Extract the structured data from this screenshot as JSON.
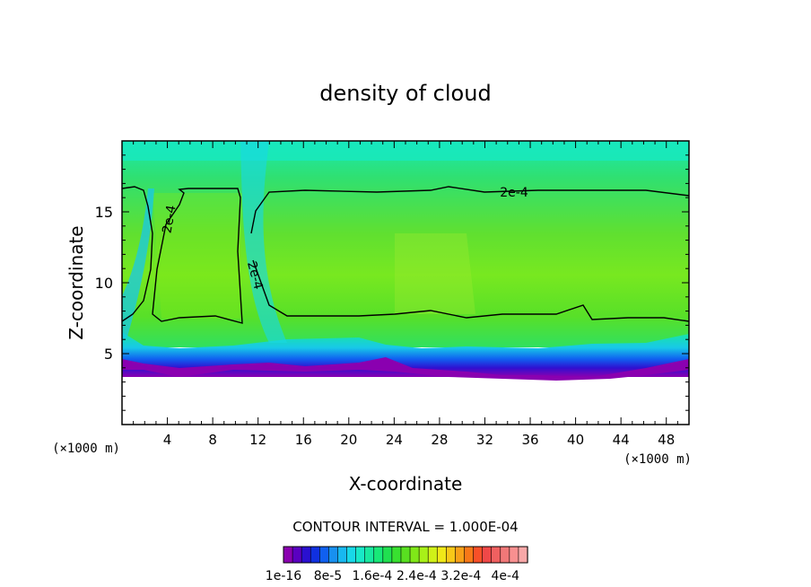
{
  "chart_data": {
    "type": "heatmap",
    "title": "density of cloud",
    "xlabel": "X-coordinate",
    "ylabel": "Z-coordinate",
    "x_unit_left": "(×1000 m)",
    "x_unit_right": "(×1000 m)",
    "xlim": [
      0,
      50
    ],
    "ylim": [
      0,
      20
    ],
    "x_ticks": [
      4,
      8,
      12,
      16,
      20,
      24,
      28,
      32,
      36,
      40,
      44,
      48
    ],
    "y_ticks": [
      5,
      10,
      15
    ],
    "contour_interval_text": "CONTOUR INTERVAL = 1.000E-04",
    "contour_labels": [
      "2e-4",
      "2e-4",
      "2e-4"
    ],
    "colorbar": {
      "range": [
        1e-16,
        0.00044
      ],
      "tick_labels": [
        "1e-16",
        "8e-5",
        "1.6e-4",
        "2.4e-4",
        "3.2e-4",
        "4e-4"
      ],
      "tick_values": [
        1e-16,
        8e-05,
        0.00016,
        0.00024,
        0.00032,
        0.0004
      ],
      "colors": [
        "#8a00b0",
        "#5a00c0",
        "#2a10d0",
        "#1030e0",
        "#1060f0",
        "#1890f0",
        "#18b8f0",
        "#18d8e8",
        "#18e8c8",
        "#18e8a0",
        "#18e878",
        "#20e050",
        "#38e030",
        "#58e020",
        "#80e818",
        "#a8f018",
        "#d0f018",
        "#f0e818",
        "#f8c818",
        "#f8a018",
        "#f87818",
        "#f85028",
        "#f04848",
        "#f06060",
        "#f07878",
        "#f89090",
        "#f8a8a8"
      ]
    },
    "field_description_data": {
      "cloud_base_z": 4.2,
      "upper_contour_z": 16.3,
      "lower_contour_z": 7.6,
      "mid_column_max": 0.00024
    }
  }
}
